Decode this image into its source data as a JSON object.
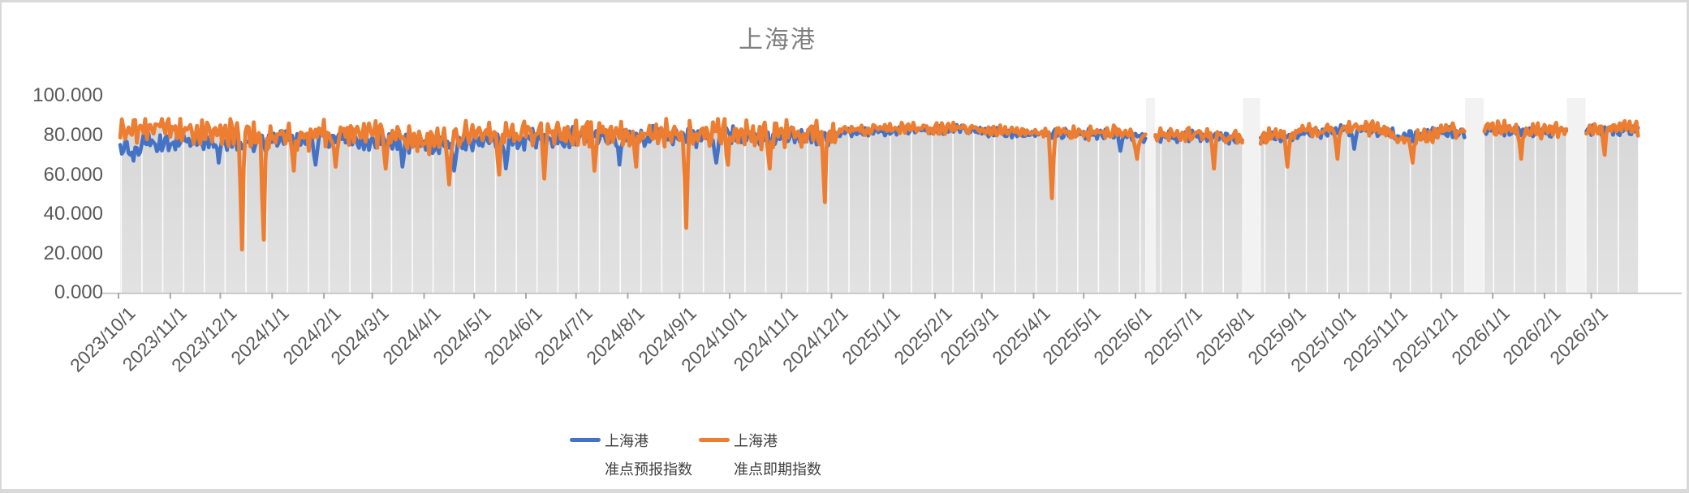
{
  "window": {
    "background": "#FFFFFF",
    "border_color": "#D9D9D9"
  },
  "chart_data": {
    "type": "line",
    "title": "上海港",
    "title_color": "#7F7F7F",
    "legend_position": "bottom",
    "grid": "vertical-white-lines-inside-gray-area",
    "plot": {
      "area_fill_top": "#D7D7D7",
      "area_fill_bottom": "#E2E2E2",
      "gap_fill": "#F2F2F2",
      "gridline_color": "#FFFFFF",
      "axis_color": "#C8C8C8",
      "tick_color": "#A8A8A8",
      "label_color": "#595959"
    },
    "y_axis": {
      "min": 0,
      "max": 100,
      "tick_labels": [
        "100.000",
        "80.000",
        "60.000",
        "40.000",
        "20.000",
        "0.000"
      ]
    },
    "x_axis": {
      "start_date": "2023/10/1",
      "tick_labels": [
        "2023/10/1",
        "2023/11/1",
        "2023/12/1",
        "2024/1/1",
        "2024/2/1",
        "2024/3/1",
        "2024/4/1",
        "2024/5/1",
        "2024/6/1",
        "2024/7/1",
        "2024/8/1",
        "2024/9/1",
        "2024/10/1",
        "2024/11/1",
        "2024/12/1",
        "2025/1/1",
        "2025/2/1",
        "2025/3/1",
        "2025/4/1",
        "2025/5/1",
        "2025/6/1",
        "2025/7/1",
        "2025/8/1",
        "2025/9/1",
        "2025/10/1",
        "2025/11/1",
        "2025/12/1",
        "2026/1/1",
        "2026/2/1",
        "2026/3/1"
      ]
    },
    "data_start_day": 1,
    "data_end_day": 910,
    "gaps_days": [
      [
        616,
        620
      ],
      [
        674,
        683
      ],
      [
        807,
        817
      ],
      [
        868,
        878
      ]
    ],
    "gaps_dates": [
      [
        "2025/6/8",
        "2025/6/12"
      ],
      [
        "2025/8/5",
        "2025/8/14"
      ],
      [
        "2025/12/16",
        "2025/12/26"
      ],
      [
        "2026/2/15",
        "2026/2/25"
      ]
    ],
    "series": [
      {
        "name": "上海港 准点预报指数",
        "legend_lines": [
          "上海港",
          "准点预报指数"
        ],
        "color": "#4472C4",
        "seed": 7,
        "max": 86.5,
        "typical_range": [
          68,
          86
        ],
        "base_step_days": 14,
        "base": [
          74,
          77,
          75.5,
          78,
          75,
          77,
          76,
          78,
          76.5,
          79,
          76,
          78,
          77,
          75,
          74,
          77,
          78,
          77,
          79,
          78,
          80,
          79,
          78,
          80,
          79,
          78,
          80,
          79,
          78,
          80,
          79,
          81,
          82,
          82,
          83,
          82.5,
          83,
          82,
          81,
          80,
          81,
          80,
          81,
          80,
          79,
          79,
          80,
          79,
          78,
          78.5,
          80,
          81,
          82,
          83,
          82,
          79,
          81,
          82,
          82,
          83,
          82,
          81.5,
          82,
          82,
          83,
          82
        ],
        "noise": [
          {
            "from": 0,
            "to": 430,
            "amp": 5.5
          },
          {
            "from": 430,
            "to": 560,
            "amp": 2.5
          },
          {
            "from": 560,
            "to": 911,
            "amp": 3.2
          }
        ],
        "dips": [
          [
            7,
            70
          ],
          [
            9,
            67
          ],
          [
            12,
            70
          ],
          [
            60,
            66
          ],
          [
            118,
            65
          ],
          [
            170,
            64
          ],
          [
            201,
            62
          ],
          [
            232,
            63
          ],
          [
            300,
            65
          ],
          [
            358,
            66
          ],
          [
            600,
            72
          ],
          [
            740,
            73
          ]
        ]
      },
      {
        "name": "上海港 准点即期指数",
        "legend_lines": [
          "上海港",
          "准点即期指数"
        ],
        "color": "#ED7D31",
        "seed": 13,
        "max": 88.2,
        "typical_range": [
          60,
          88
        ],
        "base_step_days": 14,
        "base": [
          83,
          84,
          82,
          83,
          81,
          82,
          80,
          81,
          79,
          82,
          80,
          81,
          79,
          78,
          77,
          80,
          81,
          80,
          82,
          81,
          82,
          81,
          80,
          82,
          81,
          80,
          82,
          81,
          80,
          82,
          81,
          82,
          83,
          83,
          84,
          83,
          84,
          83,
          82,
          81,
          82,
          81,
          82,
          81,
          80,
          80,
          81,
          80,
          79,
          79,
          81,
          82,
          83,
          84,
          83,
          78,
          80,
          82,
          83,
          84,
          83,
          82,
          83,
          83,
          84,
          83
        ],
        "noise": [
          {
            "from": 0,
            "to": 430,
            "amp": 8.2
          },
          {
            "from": 430,
            "to": 560,
            "amp": 3.2
          },
          {
            "from": 560,
            "to": 911,
            "amp": 4.2
          }
        ],
        "dips": [
          [
            74,
            22
          ],
          [
            87,
            27
          ],
          [
            105,
            62
          ],
          [
            130,
            64
          ],
          [
            160,
            63
          ],
          [
            198,
            55
          ],
          [
            228,
            60
          ],
          [
            255,
            58
          ],
          [
            285,
            62
          ],
          [
            310,
            64
          ],
          [
            340,
            33
          ],
          [
            365,
            65
          ],
          [
            390,
            63
          ],
          [
            423,
            46
          ],
          [
            559,
            48
          ],
          [
            610,
            68
          ],
          [
            656,
            63
          ],
          [
            700,
            64
          ],
          [
            730,
            68
          ],
          [
            775,
            66
          ],
          [
            840,
            68
          ],
          [
            890,
            70
          ]
        ],
        "notable_dips": [
          {
            "date": "2023/12/14",
            "value": 22
          },
          {
            "date": "2023/12/27",
            "value": 27
          },
          {
            "date": "2024/4/16",
            "value": 55
          },
          {
            "date": "2024/9/5",
            "value": 33
          },
          {
            "date": "2024/11/27",
            "value": 46
          },
          {
            "date": "2025/4/12",
            "value": 48
          }
        ]
      }
    ]
  }
}
